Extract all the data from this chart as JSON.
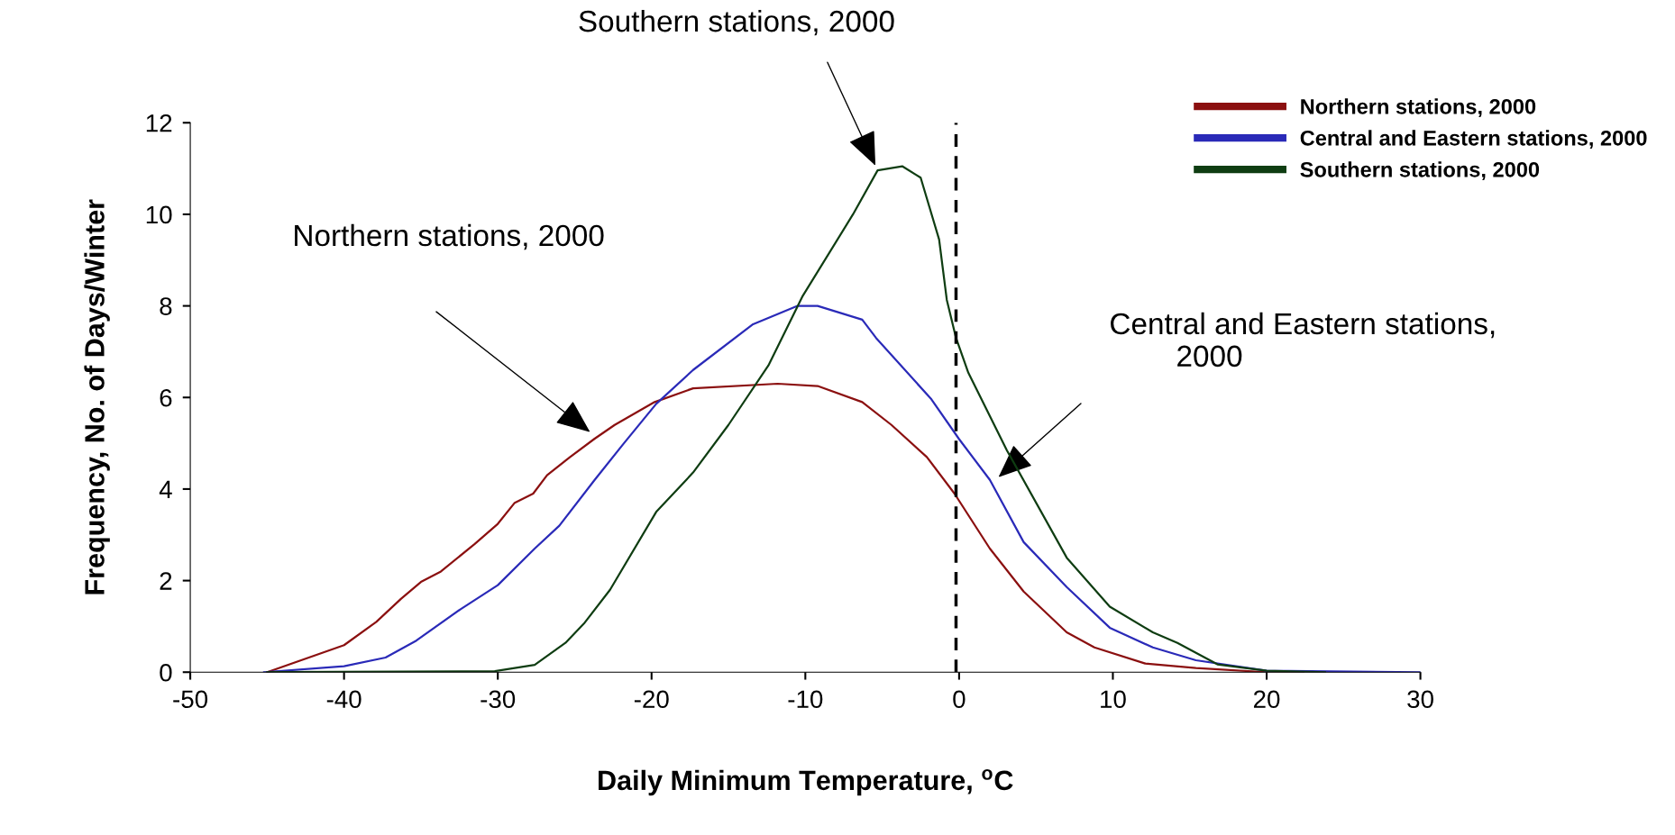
{
  "chart_data": {
    "type": "line",
    "xlabel": "Daily Minimum Temperature, $^{o}$C",
    "ylabel": "Frequency, No. of Days/Winter",
    "xlim": [
      -50,
      30
    ],
    "xticks": [
      -50,
      -40,
      -30,
      -20,
      -10,
      0,
      10,
      20,
      30
    ],
    "ylim": [
      0,
      12
    ],
    "yticks": [
      0,
      2,
      4,
      6,
      8,
      10,
      12
    ],
    "grid": false,
    "legend": "top right",
    "marker": "none",
    "line_style": "solid",
    "series": [
      {
        "name": "Northern stations, 2000",
        "color": "#8b1010",
        "x": [
          -45,
          -40,
          -37.9,
          -36.3,
          -35,
          -33.7,
          -31.5,
          -30,
          -28.9,
          -27.7,
          -26.8,
          -25.3,
          -23.7,
          -22.4,
          -19.8,
          -17.3,
          -11.8,
          -9.2,
          -6.3,
          -4.4,
          -2.1,
          -0.3,
          2,
          4.2,
          7,
          8.8,
          12.1,
          15.4,
          20,
          22.4
        ],
        "values": [
          0,
          0.59,
          1.1,
          1.6,
          1.97,
          2.2,
          2.8,
          3.24,
          3.7,
          3.9,
          4.3,
          4.7,
          5.1,
          5.4,
          5.9,
          6.2,
          6.3,
          6.25,
          5.9,
          5.4,
          4.7,
          3.9,
          2.7,
          1.76,
          0.87,
          0.54,
          0.19,
          0.09,
          0,
          0
        ]
      },
      {
        "name": "Central and Eastern stations, 2000",
        "color": "#2a2ab8",
        "x": [
          -45.2,
          -40,
          -37.3,
          -35.3,
          -32.4,
          -30,
          -27.6,
          -26,
          -23.7,
          -21.8,
          -19.7,
          -17.3,
          -13.4,
          -10.5,
          -9.2,
          -6.3,
          -5.4,
          -1.8,
          0,
          2,
          4.2,
          7,
          9.8,
          12.6,
          15.4,
          20,
          30
        ],
        "values": [
          0,
          0.13,
          0.32,
          0.69,
          1.38,
          1.9,
          2.7,
          3.2,
          4.2,
          5.0,
          5.86,
          6.6,
          7.6,
          8.0,
          8.0,
          7.7,
          7.3,
          5.96,
          5.09,
          4.2,
          2.84,
          1.86,
          0.97,
          0.54,
          0.26,
          0.03,
          0
        ]
      },
      {
        "name": "Southern stations, 2000",
        "color": "#0f3d12",
        "x": [
          -45,
          -30.2,
          -27.6,
          -25.6,
          -24.4,
          -22.7,
          -19.7,
          -17.3,
          -15,
          -12.4,
          -10.2,
          -6.9,
          -5.3,
          -3.7,
          -2.5,
          -1.3,
          -0.8,
          -0.2,
          0.6,
          3.1,
          7,
          9.8,
          12.6,
          14.2,
          16.8,
          20,
          23.8
        ],
        "values": [
          0,
          0.02,
          0.16,
          0.64,
          1.06,
          1.8,
          3.5,
          4.36,
          5.4,
          6.7,
          8.2,
          10.0,
          10.96,
          11.05,
          10.8,
          9.45,
          8.13,
          7.3,
          6.54,
          4.85,
          2.5,
          1.43,
          0.87,
          0.64,
          0.17,
          0.03,
          0
        ]
      }
    ],
    "ref_lines": [
      {
        "axis": "x",
        "value": -0.2,
        "label": null,
        "color": "#000000",
        "line_style": "dashed"
      }
    ],
    "annotations": [
      "Southern stations, 2000",
      "Northern stations, 2000",
      "Central and Eastern stations,\n        2000"
    ]
  }
}
